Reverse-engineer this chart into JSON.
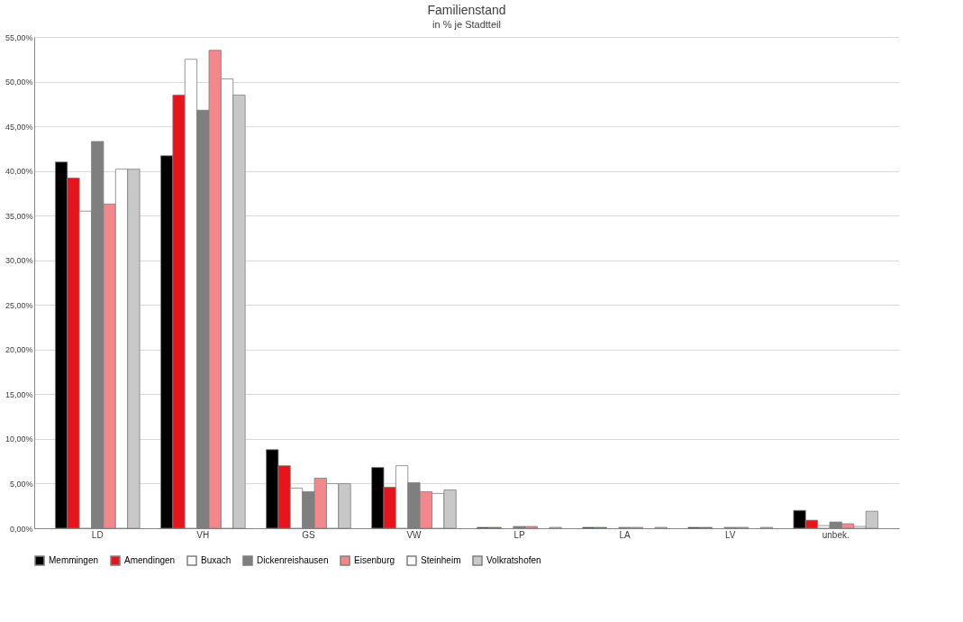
{
  "chart_data": {
    "type": "bar",
    "title": "Familienstand",
    "subtitle": "in % je Stadtteil",
    "categories": [
      "LD",
      "VH",
      "GS",
      "VW",
      "LP",
      "LA",
      "LV",
      "unbek."
    ],
    "series": [
      {
        "name": "Memmingen",
        "color": "#000000",
        "values": [
          41.0,
          41.7,
          8.8,
          6.8,
          0.1,
          0.1,
          0.1,
          2.0
        ]
      },
      {
        "name": "Amendingen",
        "color": "#e8141b",
        "values": [
          39.2,
          48.5,
          7.0,
          4.6,
          0.1,
          0.1,
          0.1,
          0.9
        ]
      },
      {
        "name": "Buxach",
        "color": "#ffffff",
        "values": [
          35.5,
          52.5,
          4.5,
          7.0,
          null,
          null,
          null,
          0.3
        ]
      },
      {
        "name": "Dickenreishausen",
        "color": "#7f7f7f",
        "values": [
          43.3,
          46.8,
          4.1,
          5.1,
          0.2,
          0.1,
          0.1,
          0.7
        ]
      },
      {
        "name": "Eisenburg",
        "color": "#f4878c",
        "values": [
          36.3,
          53.5,
          5.6,
          4.1,
          0.2,
          0.1,
          0.1,
          0.5
        ]
      },
      {
        "name": "Steinheim",
        "color": "#ffffff",
        "values": [
          40.2,
          50.3,
          5.0,
          3.9,
          null,
          null,
          null,
          0.2
        ]
      },
      {
        "name": "Volkratshofen",
        "color": "#c8c8c8",
        "values": [
          40.2,
          48.5,
          5.0,
          4.3,
          0.1,
          0.1,
          0.1,
          1.9
        ]
      }
    ],
    "ylim": [
      0,
      55
    ],
    "yticks": [
      {
        "value": 0,
        "label": "0,00%"
      },
      {
        "value": 5,
        "label": "5,00%"
      },
      {
        "value": 10,
        "label": "10,00%"
      },
      {
        "value": 15,
        "label": "15,00%"
      },
      {
        "value": 20,
        "label": "20,00%"
      },
      {
        "value": 25,
        "label": "25,00%"
      },
      {
        "value": 30,
        "label": "30,00%"
      },
      {
        "value": 35,
        "label": "35,00%"
      },
      {
        "value": 40,
        "label": "40,00%"
      },
      {
        "value": 45,
        "label": "45,00%"
      },
      {
        "value": 50,
        "label": "50,00%"
      },
      {
        "value": 55,
        "label": "55,00%"
      }
    ],
    "grid": "y",
    "legend": "bottom"
  }
}
